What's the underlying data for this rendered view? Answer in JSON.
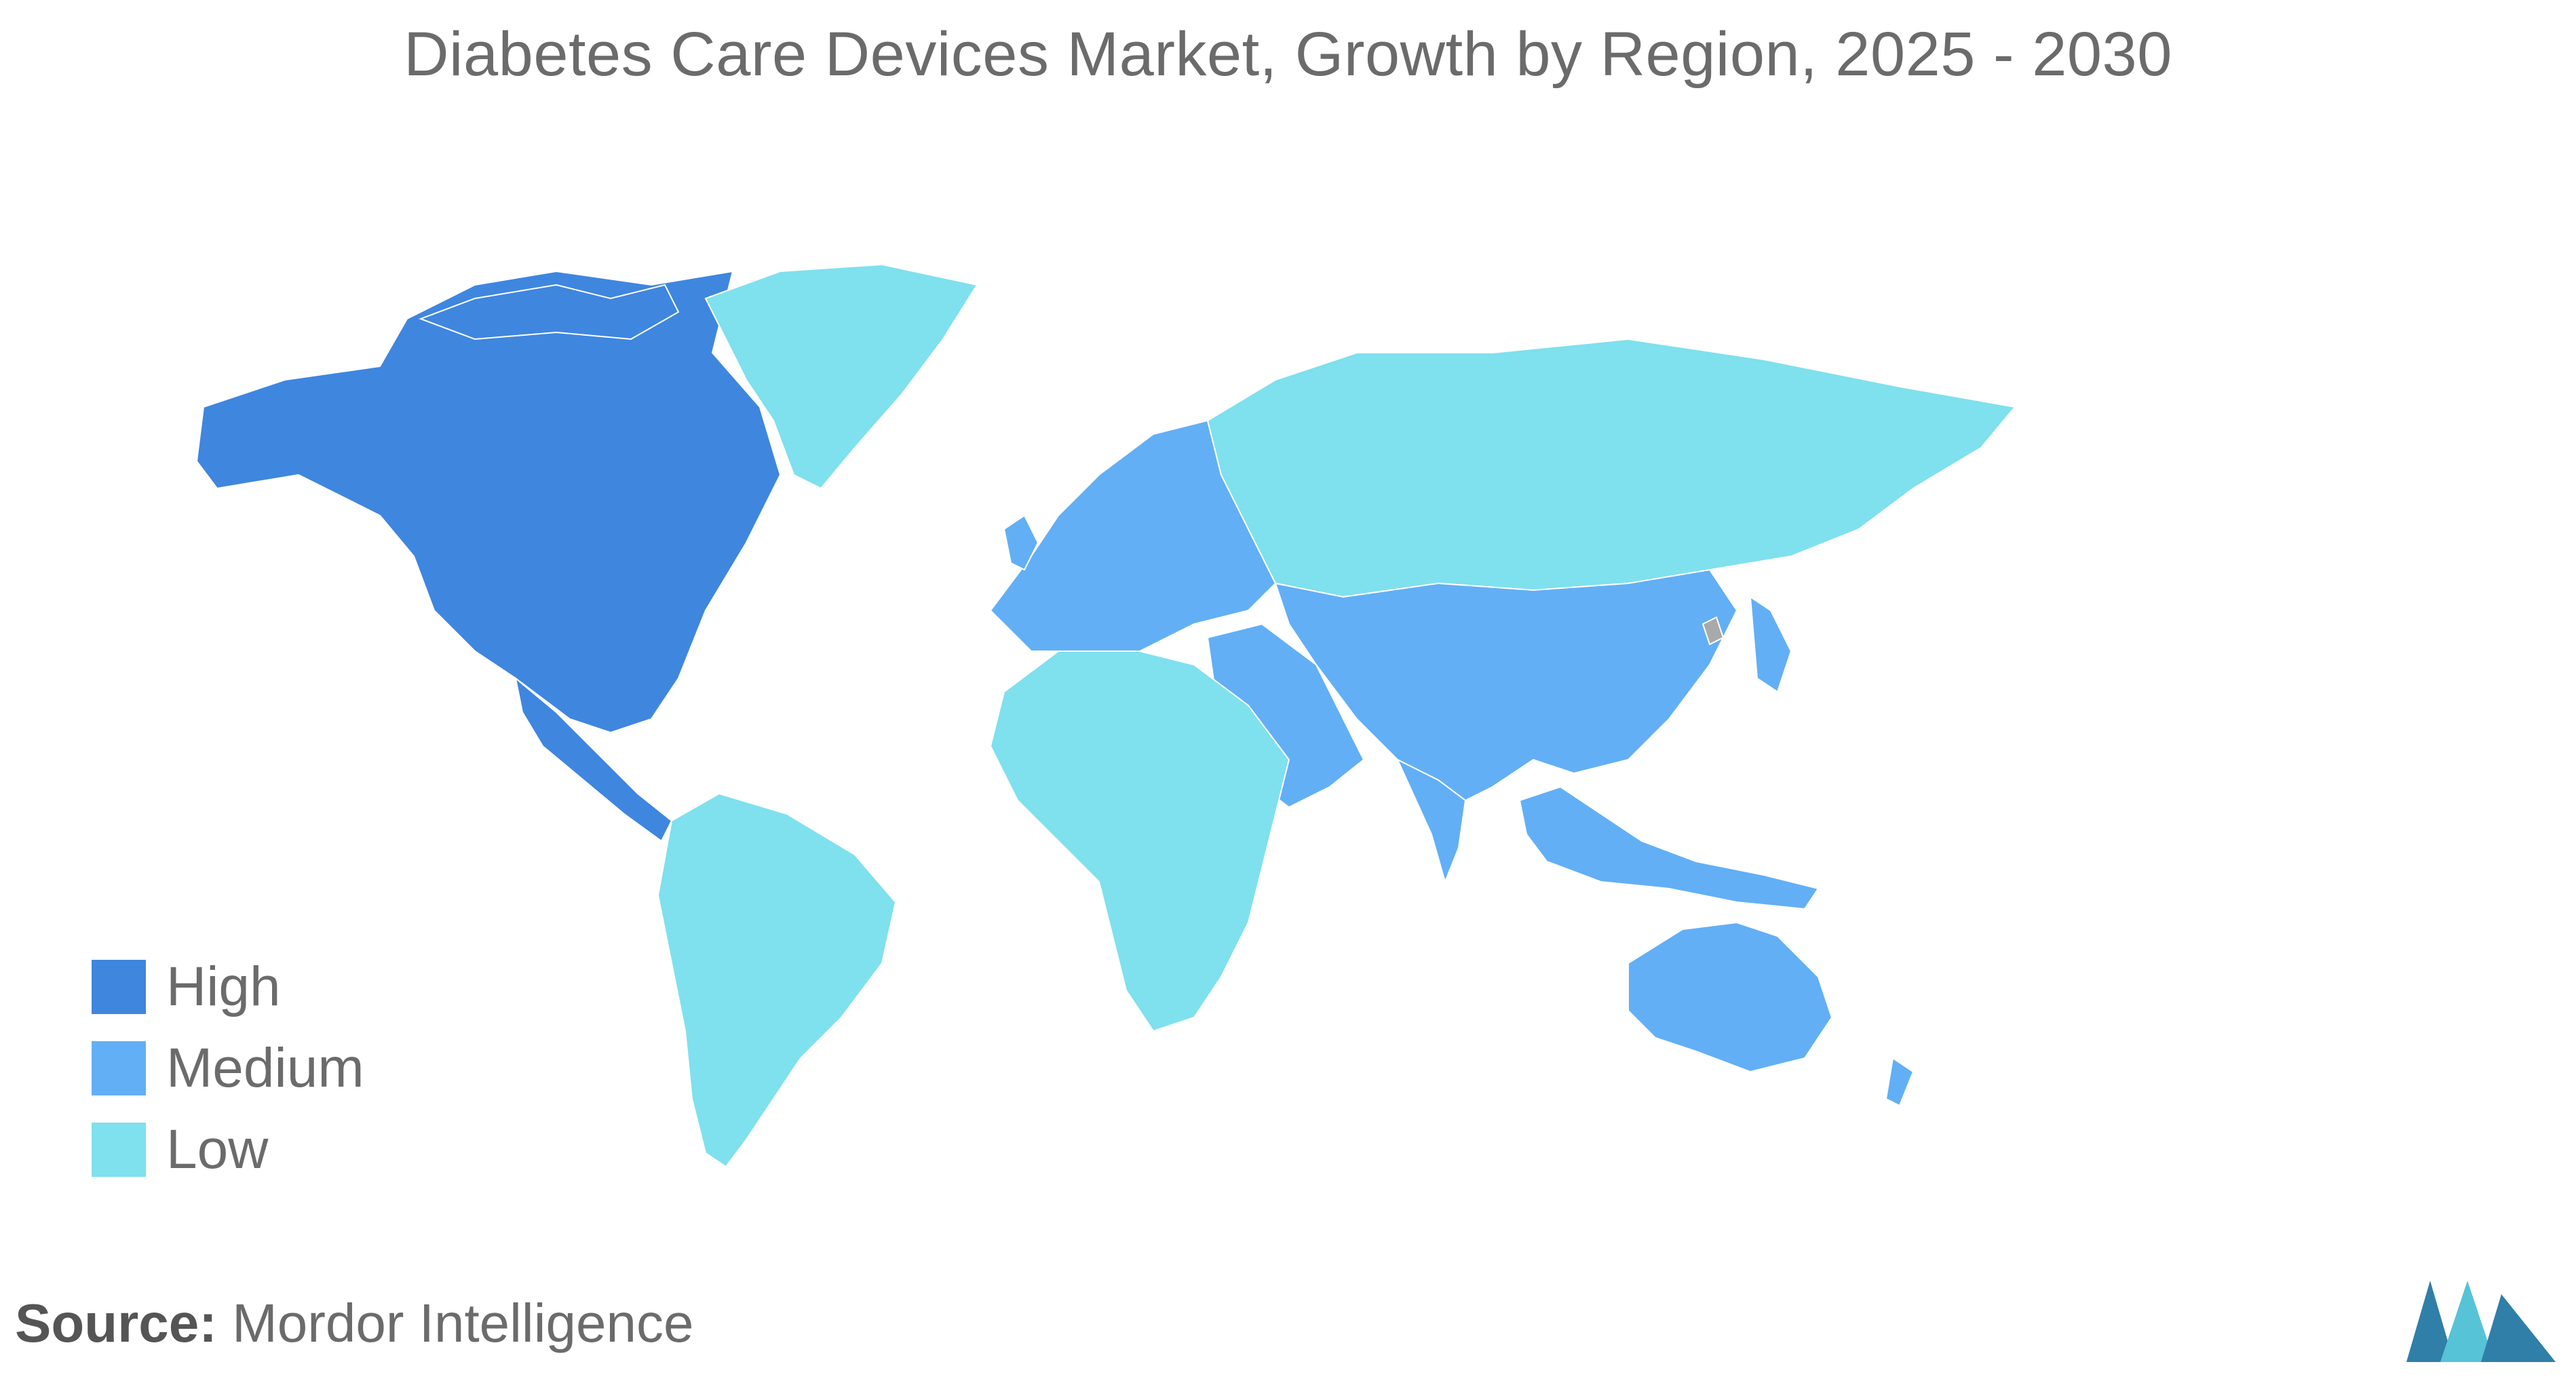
{
  "title": "Diabetes Care Devices Market, Growth by Region, 2025 - 2030",
  "legend": [
    {
      "label": "High",
      "color": "#3f86df"
    },
    {
      "label": "Medium",
      "color": "#62aff5"
    },
    {
      "label": "Low",
      "color": "#7fe0ee"
    }
  ],
  "no_data_color": "#a9a9a9",
  "regions": [
    {
      "name": "North America",
      "level": "High"
    },
    {
      "name": "Central America",
      "level": "High"
    },
    {
      "name": "Europe",
      "level": "Medium"
    },
    {
      "name": "Asia",
      "level": "Medium"
    },
    {
      "name": "Middle East",
      "level": "Medium"
    },
    {
      "name": "Southeast Asia",
      "level": "Medium"
    },
    {
      "name": "Australia and New Zealand",
      "level": "Medium"
    },
    {
      "name": "South America",
      "level": "Low"
    },
    {
      "name": "Africa",
      "level": "Low"
    },
    {
      "name": "Russia",
      "level": "Low"
    },
    {
      "name": "Greenland",
      "level": "Low"
    }
  ],
  "source": {
    "label": "Source:",
    "value": "Mordor Intelligence"
  }
}
